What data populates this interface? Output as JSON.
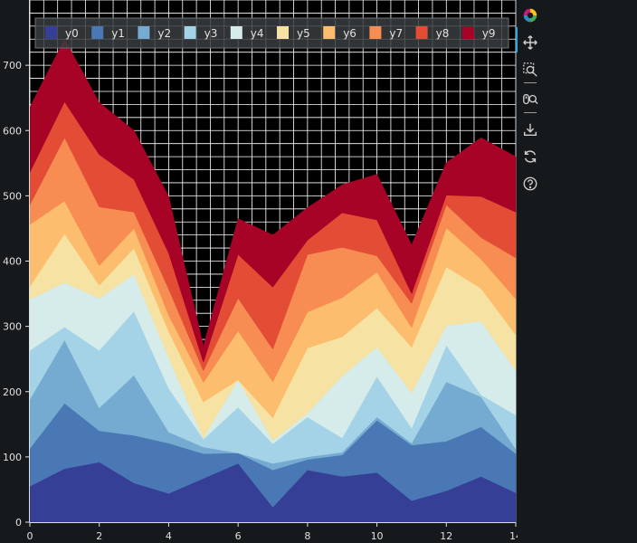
{
  "chart_data": {
    "type": "area",
    "stacked": true,
    "x": [
      0,
      1,
      2,
      3,
      4,
      5,
      6,
      7,
      8,
      9,
      10,
      11,
      12,
      13,
      14
    ],
    "xlim": [
      0,
      14
    ],
    "ylim": [
      0,
      800
    ],
    "x_ticks": [
      0,
      2,
      4,
      6,
      8,
      10,
      12,
      14
    ],
    "y_ticks": [
      0,
      100,
      200,
      300,
      400,
      500,
      600,
      700
    ],
    "title": "",
    "xlabel": "",
    "ylabel": "",
    "grid": true,
    "legend_placement": "top, horizontal",
    "background": "#000000",
    "series": [
      {
        "name": "y0",
        "color": "#353f96",
        "values": [
          55,
          82,
          92,
          60,
          44,
          67,
          90,
          23,
          80,
          70,
          76,
          33,
          48,
          70,
          45
        ]
      },
      {
        "name": "y1",
        "color": "#4a78b5",
        "values": [
          58,
          100,
          48,
          73,
          77,
          38,
          16,
          57,
          16,
          33,
          80,
          85,
          76,
          76,
          60
        ]
      },
      {
        "name": "y2",
        "color": "#75abd1",
        "values": [
          75,
          97,
          35,
          92,
          17,
          10,
          0,
          10,
          4,
          4,
          5,
          3,
          91,
          46,
          7
        ]
      },
      {
        "name": "y3",
        "color": "#a4d2e6",
        "values": [
          75,
          20,
          88,
          98,
          67,
          12,
          70,
          30,
          61,
          22,
          62,
          23,
          56,
          3,
          52
        ]
      },
      {
        "name": "y4",
        "color": "#d5ecea",
        "values": [
          78,
          68,
          80,
          57,
          47,
          2,
          42,
          5,
          6,
          95,
          45,
          54,
          30,
          113,
          68
        ]
      },
      {
        "name": "y5",
        "color": "#f6e3a3",
        "values": [
          20,
          75,
          20,
          40,
          40,
          55,
          0,
          35,
          100,
          60,
          60,
          70,
          90,
          50,
          55
        ]
      },
      {
        "name": "y6",
        "color": "#fcbe6e",
        "values": [
          95,
          50,
          30,
          30,
          25,
          30,
          75,
          55,
          55,
          60,
          55,
          30,
          60,
          45,
          55
        ]
      },
      {
        "name": "y7",
        "color": "#f78d53",
        "values": [
          30,
          97,
          90,
          25,
          40,
          18,
          50,
          50,
          88,
          77,
          25,
          37,
          35,
          33,
          63
        ]
      },
      {
        "name": "y8",
        "color": "#e44d35",
        "values": [
          50,
          55,
          80,
          50,
          55,
          13,
          67,
          95,
          22,
          53,
          55,
          15,
          15,
          63,
          70
        ]
      },
      {
        "name": "y9",
        "color": "#a70326",
        "values": [
          100,
          96,
          80,
          75,
          87,
          25,
          55,
          80,
          50,
          43,
          70,
          75,
          50,
          90,
          85
        ]
      }
    ]
  },
  "toolbar": {
    "tools": [
      "bokeh-logo",
      "pan-icon",
      "box-zoom-icon",
      "wheel-zoom-icon",
      "save-icon",
      "reset-icon",
      "help-icon"
    ]
  }
}
